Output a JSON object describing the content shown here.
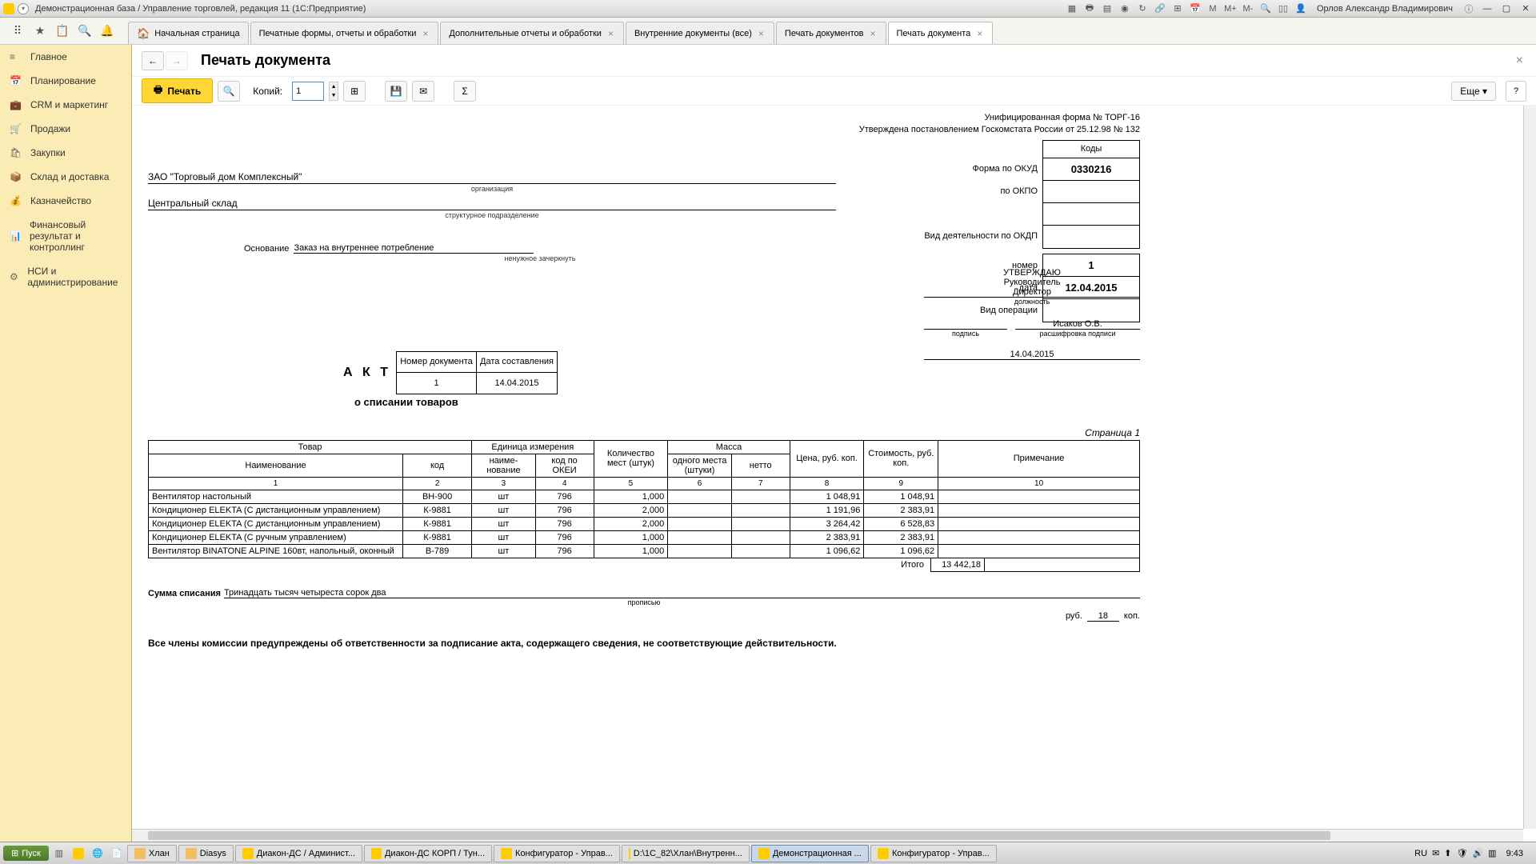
{
  "titlebar": {
    "title": "Демонстрационная база / Управление торговлей, редакция 11  (1С:Предприятие)",
    "user": "Орлов Александр Владимирович"
  },
  "tabs": [
    {
      "label": "Начальная страница",
      "home": true,
      "closable": false
    },
    {
      "label": "Печатные формы, отчеты и обработки",
      "closable": true
    },
    {
      "label": "Дополнительные отчеты и обработки",
      "closable": true
    },
    {
      "label": "Внутренние документы (все)",
      "closable": true
    },
    {
      "label": "Печать документов",
      "closable": true
    },
    {
      "label": "Печать документа",
      "closable": true,
      "active": true
    }
  ],
  "sidebar": [
    {
      "icon": "≡",
      "label": "Главное"
    },
    {
      "icon": "📅",
      "label": "Планирование"
    },
    {
      "icon": "💼",
      "label": "CRM и маркетинг"
    },
    {
      "icon": "🛒",
      "label": "Продажи"
    },
    {
      "icon": "🛍",
      "label": "Закупки"
    },
    {
      "icon": "📦",
      "label": "Склад и доставка"
    },
    {
      "icon": "💰",
      "label": "Казначейство"
    },
    {
      "icon": "📊",
      "label": "Финансовый результат и контроллинг"
    },
    {
      "icon": "⚙",
      "label": "НСИ и администрирование"
    }
  ],
  "content": {
    "title": "Печать документа",
    "print_btn": "Печать",
    "copies_label": "Копий:",
    "copies_value": "1",
    "more_btn": "Еще"
  },
  "doc": {
    "form_line1": "Унифицированная форма № ТОРГ-16",
    "form_line2": "Утверждена постановлением Госкомстата России от 25.12.98 № 132",
    "codes_hdr": "Коды",
    "okud_label": "Форма по ОКУД",
    "okud": "0330216",
    "okpo_label": "по ОКПО",
    "okdp_label": "Вид деятельности по ОКДП",
    "num_label": "номер",
    "num": "1",
    "date_label": "дата",
    "date": "12.04.2015",
    "oper_label": "Вид операции",
    "org": "ЗАО \"Торговый дом Комплексный\"",
    "org_small": "организация",
    "dept": "Центральный склад",
    "dept_small": "структурное подразделение",
    "basis_label": "Основание",
    "basis": "Заказ на внутреннее потребление",
    "basis_small": "ненужное зачеркнуть",
    "akt": "А К Т",
    "akt_sub": "о списании товаров",
    "docnum_hdr": "Номер документа",
    "docdate_hdr": "Дата составления",
    "docnum": "1",
    "docdate": "14.04.2015",
    "approve": "УТВЕРЖДАЮ",
    "approve_role": "Руководитель",
    "approve_pos": "Директор",
    "approve_pos_small": "должность",
    "approve_sign_small": "подпись",
    "approve_name": "Исаков О.В.",
    "approve_name_small": "расшифровка подписи",
    "approve_date": "14.04.2015",
    "page": "Страница 1",
    "headers": {
      "tovar": "Товар",
      "name": "Наименование",
      "code": "код",
      "unit": "Единица измерения",
      "unit_name": "наиме-нование",
      "unit_code": "код по ОКЕИ",
      "qty": "Количество мест (штук)",
      "mass": "Масса",
      "mass_one": "одного места (штуки)",
      "mass_net": "нетто",
      "price": "Цена, руб. коп.",
      "cost": "Стоимость, руб. коп.",
      "note": "Примечание"
    },
    "colnums": [
      "1",
      "2",
      "3",
      "4",
      "5",
      "6",
      "7",
      "8",
      "9",
      "10"
    ],
    "rows": [
      {
        "name": "Вентилятор настольный",
        "code": "ВН-900",
        "unit": "шт",
        "ucode": "796",
        "qty": "1,000",
        "m1": "",
        "m2": "",
        "price": "1 048,91",
        "cost": "1 048,91",
        "note": ""
      },
      {
        "name": "Кондиционер ELEKTA (С дистанционным управлением)",
        "code": "К-9881",
        "unit": "шт",
        "ucode": "796",
        "qty": "2,000",
        "m1": "",
        "m2": "",
        "price": "1 191,96",
        "cost": "2 383,91",
        "note": ""
      },
      {
        "name": "Кондиционер ELEKTA (С дистанционным управлением)",
        "code": "К-9881",
        "unit": "шт",
        "ucode": "796",
        "qty": "2,000",
        "m1": "",
        "m2": "",
        "price": "3 264,42",
        "cost": "6 528,83",
        "note": ""
      },
      {
        "name": "Кондиционер ELEKTA (С ручным управлением)",
        "code": "К-9881",
        "unit": "шт",
        "ucode": "796",
        "qty": "1,000",
        "m1": "",
        "m2": "",
        "price": "2 383,91",
        "cost": "2 383,91",
        "note": ""
      },
      {
        "name": "Вентилятор BINATONE ALPINE 160вт, напольный, оконный",
        "code": "В-789",
        "unit": "шт",
        "ucode": "796",
        "qty": "1,000",
        "m1": "",
        "m2": "",
        "price": "1 096,62",
        "cost": "1 096,62",
        "note": ""
      }
    ],
    "total_label": "Итого",
    "total": "13 442,18",
    "sum_label": "Сумма списания",
    "sum_words": "Тринадцать тысяч четыреста сорок два",
    "sum_small": "прописью",
    "rub": "руб.",
    "kop_val": "18",
    "kop": "коп.",
    "warning": "Все члены комиссии предупреждены об ответственности за подписание акта, содержащего сведения, не соответствующие действительности."
  },
  "taskbar": {
    "start": "Пуск",
    "items": [
      {
        "label": "Хлан",
        "icon": "folder"
      },
      {
        "label": "Diasys",
        "icon": "folder"
      },
      {
        "label": "Диакон-ДС / Админист...",
        "icon": "yel"
      },
      {
        "label": "Диакон-ДС КОРП / Тун...",
        "icon": "yel"
      },
      {
        "label": "Конфигуратор - Управ...",
        "icon": "yel"
      },
      {
        "label": "D:\\1C_82\\Хлан\\Внутренн...",
        "icon": "yel"
      },
      {
        "label": "Демонстрационная ...",
        "icon": "yel",
        "active": true
      },
      {
        "label": "Конфигуратор - Управ...",
        "icon": "yel"
      }
    ],
    "lang": "RU",
    "clock": "9:43"
  }
}
